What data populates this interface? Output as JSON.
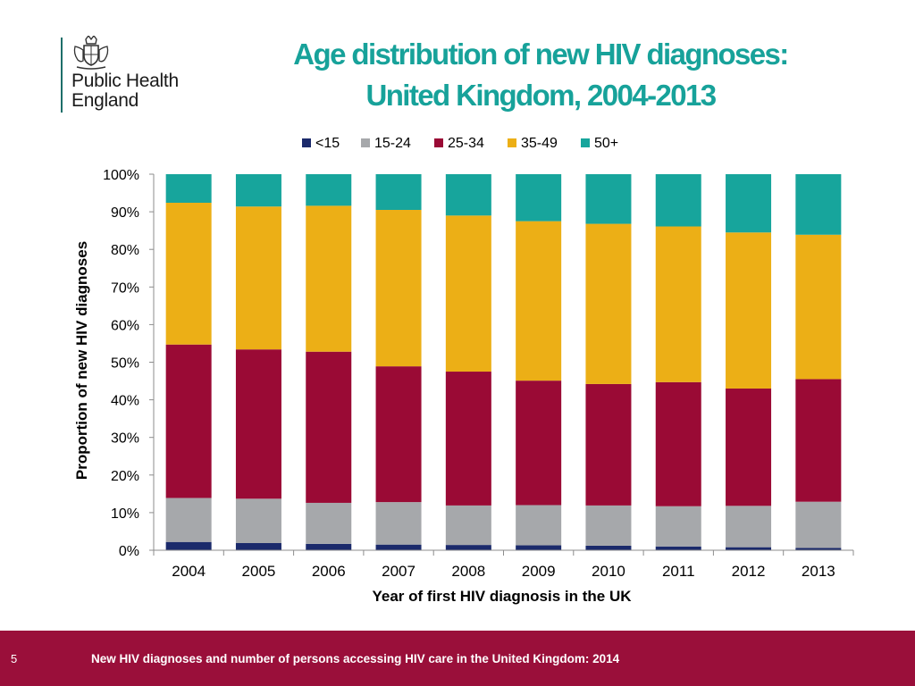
{
  "logo": {
    "line1": "Public Health",
    "line2": "England",
    "emblem": "royal-crest-icon"
  },
  "title": {
    "line1": "Age distribution of new HIV diagnoses:",
    "line2": "United Kingdom, 2004-2013"
  },
  "colors": {
    "title": "#17a29a",
    "footer": "#9a0f3a"
  },
  "chart_data": {
    "type": "bar",
    "stacked": true,
    "categories": [
      "2004",
      "2005",
      "2006",
      "2007",
      "2008",
      "2009",
      "2010",
      "2011",
      "2012",
      "2013"
    ],
    "series": [
      {
        "name": "<15",
        "color": "#1b2a6b",
        "values": [
          2.2,
          1.9,
          1.7,
          1.5,
          1.4,
          1.3,
          1.2,
          1.0,
          0.8,
          0.6
        ]
      },
      {
        "name": "15-24",
        "color": "#a6a8ab",
        "values": [
          11.7,
          11.8,
          10.9,
          11.3,
          10.5,
          10.7,
          10.7,
          10.7,
          11.0,
          12.3
        ]
      },
      {
        "name": "25-34",
        "color": "#9a0a35",
        "values": [
          40.8,
          39.7,
          40.2,
          36.1,
          35.6,
          33.1,
          32.3,
          33.0,
          31.2,
          32.6
        ]
      },
      {
        "name": "35-49",
        "color": "#ecaf16",
        "values": [
          37.7,
          38.0,
          38.8,
          41.6,
          41.5,
          42.4,
          42.6,
          41.4,
          41.5,
          38.4
        ]
      },
      {
        "name": "50+",
        "color": "#17a59c",
        "values": [
          7.6,
          8.6,
          8.4,
          9.5,
          11.0,
          12.5,
          13.2,
          13.9,
          15.5,
          16.1
        ]
      }
    ],
    "xlabel": "Year of first HIV diagnosis in the UK",
    "ylabel": "Proportion of new HIV diagnoses",
    "ylim": [
      0,
      100
    ],
    "yticks": [
      "0%",
      "10%",
      "20%",
      "30%",
      "40%",
      "50%",
      "60%",
      "70%",
      "80%",
      "90%",
      "100%"
    ],
    "legend_position": "top",
    "grid": false
  },
  "footer": {
    "slide_number": "5",
    "text": "New HIV diagnoses and number of persons accessing HIV care in the United Kingdom: 2014"
  }
}
